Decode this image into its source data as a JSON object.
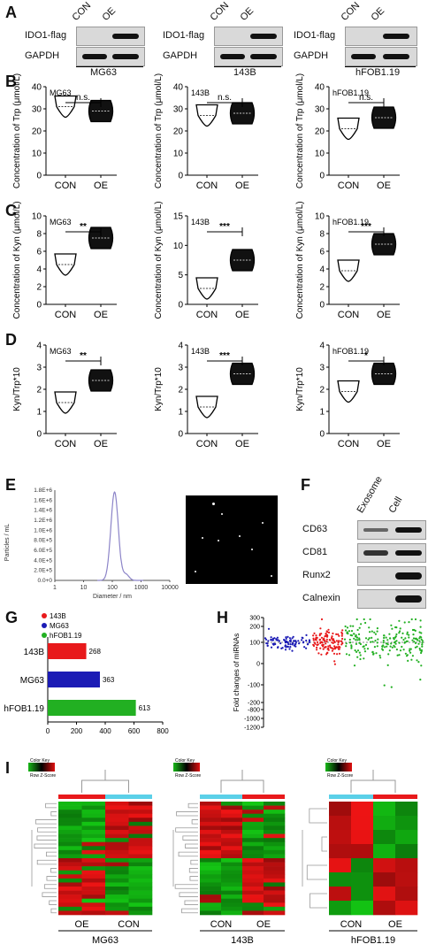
{
  "panels": {
    "A": "A",
    "B": "B",
    "C": "C",
    "D": "D",
    "E": "E",
    "F": "F",
    "G": "G",
    "H": "H",
    "I": "I"
  },
  "blots": [
    {
      "con": "CON",
      "oe": "OE",
      "row1": "IDO1-flag",
      "row2": "GAPDH",
      "cell": "MG63"
    },
    {
      "con": "CON",
      "oe": "OE",
      "row1": "IDO1-flag",
      "row2": "GAPDH",
      "cell": "143B"
    },
    {
      "con": "CON",
      "oe": "OE",
      "row1": "IDO1-flag",
      "row2": "GAPDH",
      "cell": "hFOB1.19"
    }
  ],
  "chart_data": [
    {
      "type": "violin",
      "panel": "B",
      "label": "MG63",
      "ylabel": "Concentration of Trp (μmol/L)",
      "categories": [
        "CON",
        "OE"
      ],
      "ylim": [
        0,
        40
      ],
      "yticks": [
        0,
        10,
        20,
        30,
        40
      ],
      "values": [
        31,
        29
      ],
      "sig": "n.s."
    },
    {
      "type": "violin",
      "panel": "B",
      "label": "143B",
      "ylabel": "Concentration of Trp (μmol/L)",
      "categories": [
        "CON",
        "OE"
      ],
      "ylim": [
        0,
        40
      ],
      "yticks": [
        0,
        10,
        20,
        30,
        40
      ],
      "values": [
        27,
        28
      ],
      "sig": "n.s."
    },
    {
      "type": "violin",
      "panel": "B",
      "label": "hFOB1.19",
      "ylabel": "Concentration of Trp (μmol/L)",
      "categories": [
        "CON",
        "OE"
      ],
      "ylim": [
        0,
        40
      ],
      "yticks": [
        0,
        10,
        20,
        30,
        40
      ],
      "values": [
        21,
        26
      ],
      "sig": "n.s."
    },
    {
      "type": "violin",
      "panel": "C",
      "label": "MG63",
      "ylabel": "Concentration of Kyn (μmol/L)",
      "categories": [
        "CON",
        "OE"
      ],
      "ylim": [
        0,
        10
      ],
      "yticks": [
        0,
        2,
        4,
        6,
        8,
        10
      ],
      "values": [
        4.5,
        7.5
      ],
      "sig": "**"
    },
    {
      "type": "violin",
      "panel": "C",
      "label": "143B",
      "ylabel": "Concentration of Kyn (μmol/L)",
      "categories": [
        "CON",
        "OE"
      ],
      "ylim": [
        0,
        15
      ],
      "yticks": [
        0,
        5,
        10,
        15
      ],
      "values": [
        2.7,
        7.5
      ],
      "sig": "***"
    },
    {
      "type": "violin",
      "panel": "C",
      "label": "hFOB1.19",
      "ylabel": "Concentration of Kyn (μmol/L)",
      "categories": [
        "CON",
        "OE"
      ],
      "ylim": [
        0,
        10
      ],
      "yticks": [
        0,
        2,
        4,
        6,
        8,
        10
      ],
      "values": [
        3.8,
        6.8
      ],
      "sig": "***"
    },
    {
      "type": "violin",
      "panel": "D",
      "label": "MG63",
      "ylabel": "Kyn/Trp*10",
      "categories": [
        "CON",
        "OE"
      ],
      "ylim": [
        0,
        4
      ],
      "yticks": [
        0,
        1,
        2,
        3,
        4
      ],
      "values": [
        1.4,
        2.4
      ],
      "sig": "**"
    },
    {
      "type": "violin",
      "panel": "D",
      "label": "143B",
      "ylabel": "Kyn/Trp*10",
      "categories": [
        "CON",
        "OE"
      ],
      "ylim": [
        0,
        4
      ],
      "yticks": [
        0,
        1,
        2,
        3,
        4
      ],
      "values": [
        1.2,
        2.7
      ],
      "sig": "***"
    },
    {
      "type": "violin",
      "panel": "D",
      "label": "hFOB1.19",
      "ylabel": "Kyn/Trp*10",
      "categories": [
        "CON",
        "OE"
      ],
      "ylim": [
        0,
        4
      ],
      "yticks": [
        0,
        1,
        2,
        3,
        4
      ],
      "values": [
        1.9,
        2.7
      ],
      "sig": "*"
    },
    {
      "type": "bar",
      "panel": "G",
      "orientation": "horizontal",
      "categories": [
        "143B",
        "MG63",
        "hFOB1.19"
      ],
      "values": [
        268,
        363,
        613
      ],
      "colors": [
        "#e8191b",
        "#1b1bb5",
        "#22b022"
      ],
      "xlim": [
        0,
        800
      ],
      "xticks": [
        0,
        200,
        400,
        600,
        800
      ],
      "legend": [
        "143B",
        "MG63",
        "hFOB1.19"
      ]
    },
    {
      "type": "line",
      "panel": "E",
      "xlabel": "Diameter / nm",
      "ylabel": "Particles / mL",
      "xticks": [
        "1",
        "10",
        "100",
        "1000",
        "10000"
      ],
      "yticks": [
        "0.0+0",
        "2.0E+5",
        "4.0E+5",
        "6.0E+5",
        "8.0E+5",
        "1.0E+6",
        "1.2E+6",
        "1.4E+6",
        "1.6E+6",
        "1.8E+6"
      ],
      "peak_x": 120,
      "peak_y": 1800000
    }
  ],
  "panelE": {
    "xlabel": "Diameter / nm",
    "ylabel": "Particles / mL"
  },
  "panelF": {
    "cols": [
      "Exosome",
      "Cell"
    ],
    "rows": [
      "CD63",
      "CD81",
      "Runx2",
      "Calnexin"
    ]
  },
  "panelH": {
    "ylabel": "Fold changes of miRNAs",
    "yticks": [
      "300",
      "200",
      "100",
      "0",
      "-100",
      "-200",
      "-800",
      "-1000",
      "-1200"
    ]
  },
  "panelI": [
    {
      "left": "OE",
      "right": "CON",
      "cell": "MG63"
    },
    {
      "left": "CON",
      "right": "OE",
      "cell": "143B"
    },
    {
      "left": "CON",
      "right": "OE",
      "cell": "hFOB1.19"
    }
  ],
  "colorkey": {
    "title": "Color Key",
    "sub": "Row Z-Score"
  },
  "colors": {
    "red": "#e8191b",
    "blue": "#1b1bb5",
    "green": "#22b022",
    "heatRed": "#d01010",
    "heatGreen": "#18b818"
  }
}
